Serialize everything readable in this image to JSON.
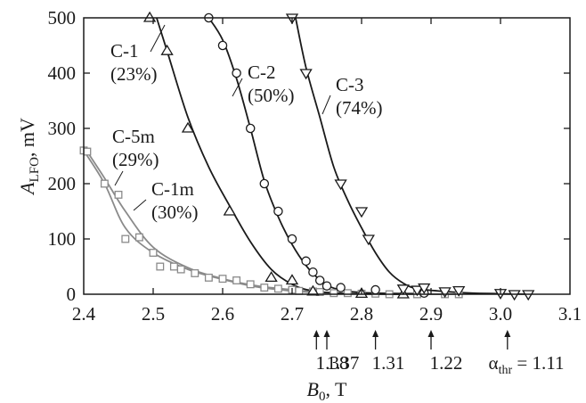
{
  "chart_data": {
    "type": "scatter",
    "xlabel": {
      "main": "B",
      "sub": "0",
      "unit": ", T"
    },
    "ylabel": {
      "main": "A",
      "sub": "LFO",
      "unit": ", mV"
    },
    "xlim": [
      2.4,
      3.1
    ],
    "ylim": [
      0,
      500
    ],
    "xticks": [
      "2.4",
      "2.5",
      "2.6",
      "2.7",
      "2.8",
      "2.9",
      "3.0",
      "3.1"
    ],
    "yticks": [
      "0",
      "100",
      "200",
      "300",
      "400",
      "500"
    ],
    "grid": false,
    "series": [
      {
        "name": "C-1m",
        "label_line2": "(30%)",
        "marker": "square",
        "color": "#8a8a8a",
        "points": [
          [
            2.4,
            260
          ],
          [
            2.43,
            200
          ],
          [
            2.46,
            100
          ],
          [
            2.51,
            50
          ],
          [
            2.54,
            45
          ],
          [
            2.58,
            30
          ],
          [
            2.62,
            25
          ],
          [
            2.66,
            12
          ],
          [
            2.7,
            8
          ],
          [
            2.73,
            5
          ],
          [
            2.76,
            2
          ],
          [
            2.8,
            1
          ],
          [
            2.84,
            0
          ],
          [
            2.88,
            0
          ],
          [
            2.92,
            0
          ]
        ],
        "curve": [
          [
            2.4,
            260
          ],
          [
            2.43,
            200
          ],
          [
            2.46,
            120
          ],
          [
            2.5,
            75
          ],
          [
            2.55,
            45
          ],
          [
            2.6,
            27
          ],
          [
            2.65,
            13
          ],
          [
            2.7,
            6
          ],
          [
            2.75,
            2
          ],
          [
            2.8,
            0.5
          ],
          [
            2.92,
            0
          ]
        ]
      },
      {
        "name": "C-5m",
        "label_line2": "(29%)",
        "marker": "square",
        "color": "#8a8a8a",
        "points": [
          [
            2.405,
            258
          ],
          [
            2.45,
            180
          ],
          [
            2.48,
            103
          ],
          [
            2.5,
            75
          ],
          [
            2.53,
            50
          ],
          [
            2.56,
            38
          ],
          [
            2.6,
            28
          ],
          [
            2.64,
            18
          ],
          [
            2.68,
            10
          ],
          [
            2.71,
            6
          ],
          [
            2.74,
            4
          ],
          [
            2.78,
            2
          ],
          [
            2.82,
            1
          ],
          [
            2.88,
            0
          ],
          [
            2.94,
            0
          ]
        ],
        "curve": [
          [
            2.405,
            258
          ],
          [
            2.43,
            210
          ],
          [
            2.46,
            150
          ],
          [
            2.5,
            85
          ],
          [
            2.55,
            48
          ],
          [
            2.6,
            28
          ],
          [
            2.65,
            15
          ],
          [
            2.7,
            8
          ],
          [
            2.75,
            3
          ],
          [
            2.8,
            1
          ],
          [
            2.94,
            0
          ]
        ]
      },
      {
        "name": "C-1",
        "label_line2": "(23%)",
        "marker": "triangle-up",
        "color": "#1a1a1a",
        "points": [
          [
            2.495,
            500
          ],
          [
            2.52,
            440
          ],
          [
            2.55,
            300
          ],
          [
            2.61,
            150
          ],
          [
            2.67,
            30
          ],
          [
            2.7,
            25
          ],
          [
            2.73,
            5
          ],
          [
            2.8,
            1
          ],
          [
            2.86,
            0
          ]
        ],
        "curve": [
          [
            2.505,
            500
          ],
          [
            2.52,
            440
          ],
          [
            2.55,
            320
          ],
          [
            2.58,
            230
          ],
          [
            2.61,
            160
          ],
          [
            2.64,
            95
          ],
          [
            2.67,
            45
          ],
          [
            2.7,
            18
          ],
          [
            2.73,
            6
          ],
          [
            2.78,
            1
          ],
          [
            2.86,
            0
          ]
        ]
      },
      {
        "name": "C-2",
        "label_line2": "(50%)",
        "marker": "circle",
        "color": "#1a1a1a",
        "points": [
          [
            2.58,
            500
          ],
          [
            2.6,
            450
          ],
          [
            2.62,
            400
          ],
          [
            2.64,
            300
          ],
          [
            2.66,
            200
          ],
          [
            2.68,
            150
          ],
          [
            2.7,
            100
          ],
          [
            2.72,
            60
          ],
          [
            2.73,
            40
          ],
          [
            2.74,
            25
          ],
          [
            2.75,
            15
          ],
          [
            2.77,
            12
          ],
          [
            2.82,
            8
          ],
          [
            2.89,
            2
          ]
        ],
        "curve": [
          [
            2.58,
            500
          ],
          [
            2.6,
            460
          ],
          [
            2.62,
            390
          ],
          [
            2.64,
            300
          ],
          [
            2.66,
            205
          ],
          [
            2.68,
            140
          ],
          [
            2.7,
            90
          ],
          [
            2.72,
            52
          ],
          [
            2.74,
            26
          ],
          [
            2.76,
            11
          ],
          [
            2.8,
            3
          ],
          [
            2.89,
            1
          ]
        ]
      },
      {
        "name": "C-3",
        "label_line2": "(74%)",
        "marker": "triangle-down",
        "color": "#1a1a1a",
        "points": [
          [
            2.7,
            500
          ],
          [
            2.72,
            400
          ],
          [
            2.77,
            200
          ],
          [
            2.8,
            150
          ],
          [
            2.81,
            100
          ],
          [
            2.86,
            10
          ],
          [
            2.88,
            8
          ],
          [
            2.89,
            12
          ],
          [
            2.92,
            5
          ],
          [
            2.94,
            7
          ],
          [
            3.0,
            2
          ],
          [
            3.02,
            0
          ],
          [
            3.04,
            0
          ]
        ],
        "curve": [
          [
            2.705,
            500
          ],
          [
            2.72,
            410
          ],
          [
            2.74,
            320
          ],
          [
            2.76,
            230
          ],
          [
            2.78,
            170
          ],
          [
            2.8,
            120
          ],
          [
            2.82,
            75
          ],
          [
            2.84,
            40
          ],
          [
            2.86,
            20
          ],
          [
            2.88,
            10
          ],
          [
            2.92,
            5
          ],
          [
            2.96,
            2
          ],
          [
            3.04,
            0
          ]
        ]
      }
    ],
    "thresholds": [
      {
        "x": 2.735,
        "label": "1.38"
      },
      {
        "x": 2.75,
        "label": "1.37"
      },
      {
        "x": 2.82,
        "label": "1.31"
      },
      {
        "x": 2.9,
        "label": "1.22"
      },
      {
        "x": 3.01,
        "label": "1.11",
        "prefix": "α",
        "prefix_sub": "thr",
        "eq": " = "
      }
    ]
  }
}
